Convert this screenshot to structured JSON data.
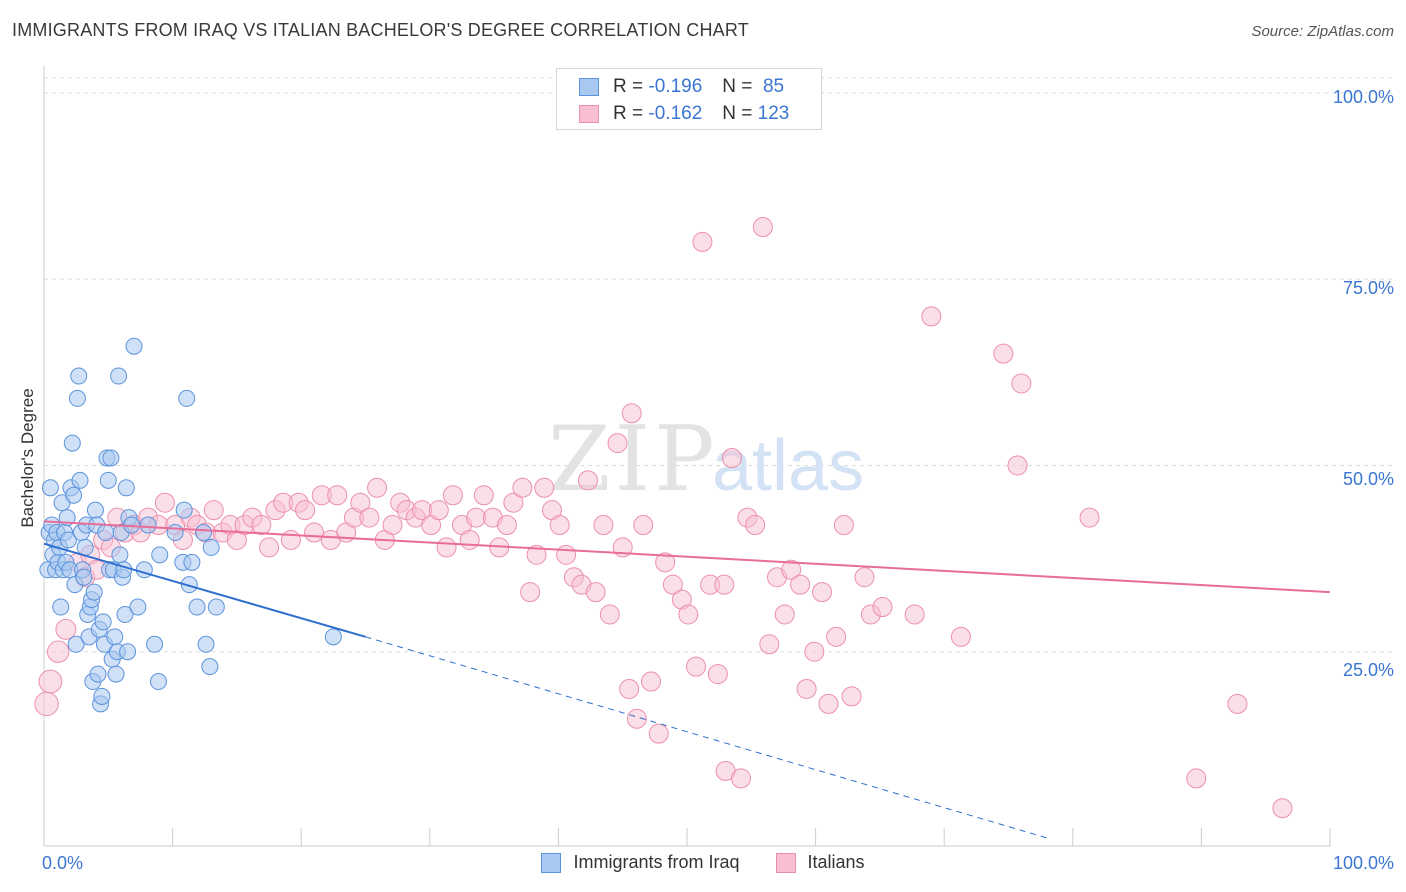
{
  "title": "IMMIGRANTS FROM IRAQ VS ITALIAN BACHELOR'S DEGREE CORRELATION CHART",
  "source": "Source: ZipAtlas.com",
  "watermark": {
    "zip": "ZIP",
    "atlas": "atlas"
  },
  "legend": {
    "series": [
      {
        "r_label": "R =",
        "r_value": "-0.196",
        "n_label": "N =",
        "n_value": "85"
      },
      {
        "r_label": "R =",
        "r_value": "-0.162",
        "n_label": "N =",
        "n_value": "123"
      }
    ]
  },
  "colors": {
    "iraq_fill": "#a9c8f0",
    "iraq_stroke": "#5b93dc",
    "iraq_line": "#2f6fcf",
    "italian_fill": "#f7bfd1",
    "italian_stroke": "#ec8fae",
    "italian_line": "#e86d97",
    "tick_text": "#3a76d2",
    "grid": "#dddddd"
  },
  "chart_data": {
    "type": "scatter",
    "title": "IMMIGRANTS FROM IRAQ VS ITALIAN BACHELOR'S DEGREE CORRELATION CHART",
    "xlabel": "",
    "ylabel": "Bachelor's Degree",
    "xlim": [
      0,
      100
    ],
    "ylim": [
      0,
      102
    ],
    "x_tick_labels": [
      "0.0%",
      "100.0%"
    ],
    "y_ticks": [
      25,
      50,
      75,
      100
    ],
    "y_tick_labels": [
      "25.0%",
      "50.0%",
      "75.0%",
      "100.0%"
    ],
    "legend_position": "bottom-center",
    "series": [
      {
        "name": "Immigrants from Iraq",
        "r": -0.196,
        "n": 85,
        "trend": {
          "x0": 0,
          "y0": 39.5,
          "x1_solid": 25,
          "y1_solid": 27,
          "x1_dashed": 78,
          "y1_dashed": 0
        },
        "points": [
          [
            0.3,
            36
          ],
          [
            0.4,
            41
          ],
          [
            0.5,
            47
          ],
          [
            0.6,
            42
          ],
          [
            0.7,
            38
          ],
          [
            0.8,
            40
          ],
          [
            0.9,
            36
          ],
          [
            1.0,
            41
          ],
          [
            1.1,
            37
          ],
          [
            1.2,
            39
          ],
          [
            1.3,
            31
          ],
          [
            1.4,
            45
          ],
          [
            1.5,
            36
          ],
          [
            1.6,
            41
          ],
          [
            1.7,
            37
          ],
          [
            1.8,
            43
          ],
          [
            1.9,
            40
          ],
          [
            2.0,
            36
          ],
          [
            2.1,
            47
          ],
          [
            2.2,
            53
          ],
          [
            2.3,
            46
          ],
          [
            2.4,
            34
          ],
          [
            2.5,
            26
          ],
          [
            2.6,
            59
          ],
          [
            2.7,
            62
          ],
          [
            2.8,
            48
          ],
          [
            2.9,
            41
          ],
          [
            3.0,
            36
          ],
          [
            3.1,
            35
          ],
          [
            3.2,
            39
          ],
          [
            3.3,
            42
          ],
          [
            3.4,
            30
          ],
          [
            3.5,
            27
          ],
          [
            3.6,
            31
          ],
          [
            3.7,
            32
          ],
          [
            3.8,
            21
          ],
          [
            3.9,
            33
          ],
          [
            4.0,
            44
          ],
          [
            4.1,
            42
          ],
          [
            4.2,
            22
          ],
          [
            4.3,
            28
          ],
          [
            4.4,
            18
          ],
          [
            4.5,
            19
          ],
          [
            4.6,
            29
          ],
          [
            4.7,
            26
          ],
          [
            4.8,
            41
          ],
          [
            4.9,
            51
          ],
          [
            5.0,
            48
          ],
          [
            5.1,
            36
          ],
          [
            5.2,
            51
          ],
          [
            5.3,
            24
          ],
          [
            5.4,
            36
          ],
          [
            5.5,
            27
          ],
          [
            5.6,
            22
          ],
          [
            5.7,
            25
          ],
          [
            5.8,
            62
          ],
          [
            5.9,
            38
          ],
          [
            6.0,
            41
          ],
          [
            6.1,
            35
          ],
          [
            6.2,
            36
          ],
          [
            6.3,
            30
          ],
          [
            6.4,
            47
          ],
          [
            6.5,
            25
          ],
          [
            6.6,
            43
          ],
          [
            6.8,
            42
          ],
          [
            7.0,
            66
          ],
          [
            7.3,
            31
          ],
          [
            7.8,
            36
          ],
          [
            8.1,
            42
          ],
          [
            8.6,
            26
          ],
          [
            8.9,
            21
          ],
          [
            9.0,
            38
          ],
          [
            10.2,
            41
          ],
          [
            10.8,
            37
          ],
          [
            10.9,
            44
          ],
          [
            11.1,
            59
          ],
          [
            11.3,
            34
          ],
          [
            11.5,
            37
          ],
          [
            11.9,
            31
          ],
          [
            12.4,
            41
          ],
          [
            12.6,
            26
          ],
          [
            12.9,
            23
          ],
          [
            13.0,
            39
          ],
          [
            13.4,
            31
          ],
          [
            22.5,
            27
          ]
        ]
      },
      {
        "name": "Italians",
        "r": -0.162,
        "n": 123,
        "trend": {
          "x0": 0,
          "y0": 42.5,
          "x1": 100,
          "y1": 33
        },
        "points": [
          [
            0.2,
            18
          ],
          [
            0.5,
            21
          ],
          [
            1.1,
            25
          ],
          [
            1.7,
            28
          ],
          [
            2.6,
            37
          ],
          [
            3.2,
            35
          ],
          [
            3.6,
            38
          ],
          [
            4.1,
            36
          ],
          [
            4.6,
            40
          ],
          [
            5.2,
            39
          ],
          [
            5.7,
            43
          ],
          [
            6.3,
            41
          ],
          [
            7.0,
            42
          ],
          [
            7.5,
            41
          ],
          [
            8.1,
            43
          ],
          [
            8.9,
            42
          ],
          [
            9.4,
            45
          ],
          [
            10.2,
            42
          ],
          [
            10.8,
            40
          ],
          [
            11.4,
            43
          ],
          [
            11.9,
            42
          ],
          [
            12.6,
            41
          ],
          [
            13.2,
            44
          ],
          [
            13.9,
            41
          ],
          [
            14.5,
            42
          ],
          [
            15.0,
            40
          ],
          [
            15.6,
            42
          ],
          [
            16.2,
            43
          ],
          [
            16.9,
            42
          ],
          [
            17.5,
            39
          ],
          [
            18.0,
            44
          ],
          [
            18.6,
            45
          ],
          [
            19.2,
            40
          ],
          [
            19.8,
            45
          ],
          [
            20.3,
            44
          ],
          [
            21.0,
            41
          ],
          [
            21.6,
            46
          ],
          [
            22.3,
            40
          ],
          [
            22.8,
            46
          ],
          [
            23.5,
            41
          ],
          [
            24.1,
            43
          ],
          [
            24.6,
            45
          ],
          [
            25.3,
            43
          ],
          [
            25.9,
            47
          ],
          [
            26.5,
            40
          ],
          [
            27.1,
            42
          ],
          [
            27.7,
            45
          ],
          [
            28.2,
            44
          ],
          [
            28.9,
            43
          ],
          [
            29.4,
            44
          ],
          [
            30.1,
            42
          ],
          [
            30.7,
            44
          ],
          [
            31.3,
            39
          ],
          [
            31.8,
            46
          ],
          [
            32.5,
            42
          ],
          [
            33.1,
            40
          ],
          [
            33.6,
            43
          ],
          [
            34.2,
            46
          ],
          [
            34.9,
            43
          ],
          [
            35.4,
            39
          ],
          [
            36.0,
            42
          ],
          [
            36.5,
            45
          ],
          [
            37.2,
            47
          ],
          [
            37.8,
            33
          ],
          [
            38.3,
            38
          ],
          [
            38.9,
            47
          ],
          [
            39.5,
            44
          ],
          [
            40.1,
            42
          ],
          [
            40.6,
            38
          ],
          [
            41.2,
            35
          ],
          [
            41.8,
            34
          ],
          [
            42.3,
            48
          ],
          [
            42.9,
            33
          ],
          [
            43.5,
            42
          ],
          [
            44.0,
            30
          ],
          [
            44.6,
            53
          ],
          [
            45.0,
            39
          ],
          [
            45.5,
            20
          ],
          [
            46.1,
            16
          ],
          [
            46.6,
            42
          ],
          [
            47.2,
            21
          ],
          [
            47.8,
            14
          ],
          [
            48.3,
            37
          ],
          [
            48.9,
            34
          ],
          [
            49.6,
            32
          ],
          [
            50.1,
            30
          ],
          [
            50.7,
            23
          ],
          [
            51.2,
            80
          ],
          [
            51.8,
            34
          ],
          [
            52.4,
            22
          ],
          [
            53.0,
            9
          ],
          [
            53.5,
            51
          ],
          [
            54.2,
            8
          ],
          [
            54.7,
            43
          ],
          [
            55.3,
            42
          ],
          [
            55.9,
            82
          ],
          [
            56.4,
            26
          ],
          [
            57.0,
            35
          ],
          [
            57.6,
            30
          ],
          [
            58.1,
            36
          ],
          [
            58.8,
            34
          ],
          [
            59.3,
            20
          ],
          [
            59.9,
            25
          ],
          [
            60.5,
            33
          ],
          [
            61.0,
            18
          ],
          [
            61.6,
            27
          ],
          [
            62.2,
            42
          ],
          [
            62.8,
            19
          ],
          [
            64.3,
            30
          ],
          [
            65.2,
            31
          ],
          [
            67.7,
            30
          ],
          [
            69.0,
            70
          ],
          [
            71.3,
            27
          ],
          [
            74.6,
            65
          ],
          [
            75.7,
            50
          ],
          [
            76.0,
            61
          ],
          [
            81.3,
            43
          ],
          [
            89.6,
            8
          ],
          [
            92.8,
            18
          ],
          [
            96.3,
            4
          ],
          [
            52.9,
            34
          ],
          [
            63.8,
            35
          ],
          [
            45.7,
            57
          ]
        ]
      }
    ]
  },
  "bottom_legend": [
    "Immigrants from Iraq",
    "Italians"
  ]
}
